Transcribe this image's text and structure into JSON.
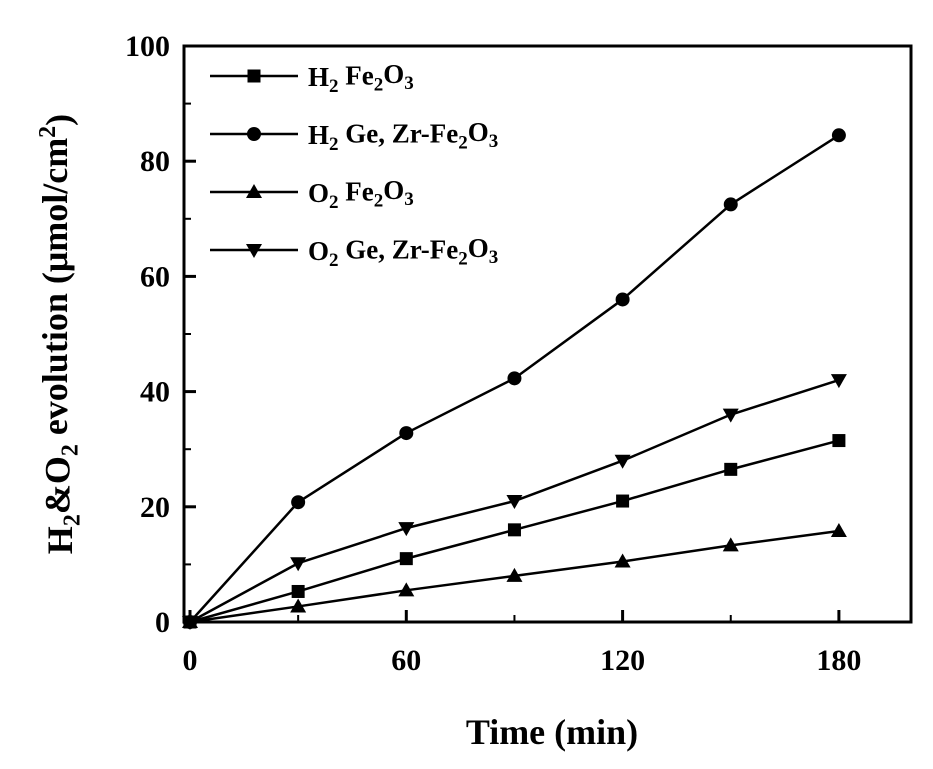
{
  "chart_data": {
    "type": "line",
    "xlabel": "Time (min)",
    "ylabel": {
      "parts": [
        {
          "text": "H",
          "sub": false
        },
        {
          "text": "2",
          "sub": true
        },
        {
          "text": "&O",
          "sub": false
        },
        {
          "text": "2",
          "sub": true
        },
        {
          "text": " evolution (μmol/cm",
          "sub": false
        },
        {
          "text": "2",
          "sub": "sup"
        },
        {
          "text": ")",
          "sub": false
        }
      ]
    },
    "xlim": [
      0,
      200
    ],
    "ylim": [
      0,
      100
    ],
    "xticks": [
      0,
      60,
      120,
      180
    ],
    "yticks": [
      0,
      20,
      40,
      60,
      80,
      100
    ],
    "grid": false,
    "legend_position": "top-left",
    "x": [
      0,
      30,
      60,
      90,
      120,
      150,
      180
    ],
    "series": [
      {
        "name": "H2 Fe2O3",
        "marker": "square",
        "label_parts": [
          {
            "text": "H",
            "sub": false
          },
          {
            "text": "2",
            "sub": true
          },
          {
            "text": " Fe",
            "sub": false
          },
          {
            "text": "2",
            "sub": true
          },
          {
            "text": "O",
            "sub": false
          },
          {
            "text": "3",
            "sub": true
          }
        ],
        "values": [
          0,
          5.3,
          11,
          16,
          21,
          26.5,
          31.5
        ]
      },
      {
        "name": "H2 Ge, Zr-Fe2O3",
        "marker": "circle",
        "label_parts": [
          {
            "text": "H",
            "sub": false
          },
          {
            "text": "2",
            "sub": true
          },
          {
            "text": " Ge, Zr-Fe",
            "sub": false
          },
          {
            "text": "2",
            "sub": true
          },
          {
            "text": "O",
            "sub": false
          },
          {
            "text": "3",
            "sub": true
          }
        ],
        "values": [
          0,
          20.8,
          32.8,
          42.3,
          56,
          72.5,
          84.5
        ]
      },
      {
        "name": "O2 Fe2O3",
        "marker": "triangle-up",
        "label_parts": [
          {
            "text": "O",
            "sub": false
          },
          {
            "text": "2",
            "sub": true
          },
          {
            "text": " Fe",
            "sub": false
          },
          {
            "text": "2",
            "sub": true
          },
          {
            "text": "O",
            "sub": false
          },
          {
            "text": "3",
            "sub": true
          }
        ],
        "values": [
          0,
          2.7,
          5.5,
          8,
          10.5,
          13.3,
          15.8
        ]
      },
      {
        "name": "O2 Ge, Zr-Fe2O3",
        "marker": "triangle-down",
        "label_parts": [
          {
            "text": "O",
            "sub": false
          },
          {
            "text": "2",
            "sub": true
          },
          {
            "text": " Ge, Zr-Fe",
            "sub": false
          },
          {
            "text": "2",
            "sub": true
          },
          {
            "text": "O",
            "sub": false
          },
          {
            "text": "3",
            "sub": true
          }
        ],
        "values": [
          0,
          10.2,
          16.3,
          21,
          28,
          36,
          42
        ]
      }
    ],
    "line_color": "#000000"
  }
}
